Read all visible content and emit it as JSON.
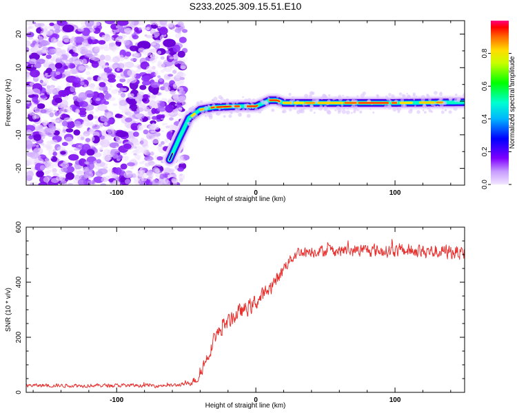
{
  "title": "S233.2025.309.15.51.E10",
  "chart_data": [
    {
      "type": "heatmap",
      "xlabel": "Height of straight line (km)",
      "ylabel": "Frequency (Hz)",
      "xlim": [
        -165,
        150
      ],
      "ylim": [
        -25,
        24
      ],
      "xticks": [
        "-100",
        "0",
        "100"
      ],
      "yticks": [
        "-20",
        "-10",
        "0",
        "10",
        "20"
      ],
      "colorbar": {
        "label": "Normalized spectral amplitude",
        "range": [
          0,
          1
        ],
        "ticks": [
          "0.0",
          "0.2",
          "0.4",
          "0.6",
          "0.8"
        ],
        "colormap": "rainbow-reversed (violet to magenta)"
      },
      "ridge": {
        "points": [
          [
            -62,
            -17.5
          ],
          [
            -55,
            -11
          ],
          [
            -48,
            -5
          ],
          [
            -40,
            -2.5
          ],
          [
            -30,
            -1.8
          ],
          [
            -15,
            -1.5
          ],
          [
            0,
            -1.5
          ],
          [
            10,
            0.3
          ],
          [
            15,
            0.3
          ],
          [
            20,
            -0.5
          ],
          [
            50,
            -0.5
          ],
          [
            100,
            -0.5
          ],
          [
            150,
            -0.3
          ]
        ]
      },
      "noise_region": {
        "x_max": -55
      }
    },
    {
      "type": "line",
      "xlabel": "Height of straight line (km)",
      "ylabel": "SNR (10 * v/v)",
      "xlim": [
        -165,
        150
      ],
      "ylim": [
        0,
        600
      ],
      "xticks": [
        "-100",
        "0",
        "100"
      ],
      "yticks": [
        "0",
        "200",
        "400",
        "600"
      ],
      "series": [
        {
          "color": "#e8302e",
          "envelope": [
            [
              -165,
              25
            ],
            [
              -60,
              25
            ],
            [
              -50,
              30
            ],
            [
              -42,
              50
            ],
            [
              -35,
              130
            ],
            [
              -30,
              200
            ],
            [
              -25,
              230
            ],
            [
              -15,
              280
            ],
            [
              -5,
              310
            ],
            [
              5,
              350
            ],
            [
              15,
              410
            ],
            [
              22,
              470
            ],
            [
              30,
              510
            ],
            [
              50,
              515
            ],
            [
              100,
              515
            ],
            [
              150,
              510
            ]
          ],
          "noise_amplitude": [
            [
              -165,
              10
            ],
            [
              -50,
              10
            ],
            [
              -35,
              40
            ],
            [
              0,
              45
            ],
            [
              30,
              30
            ],
            [
              150,
              40
            ]
          ]
        }
      ]
    }
  ]
}
